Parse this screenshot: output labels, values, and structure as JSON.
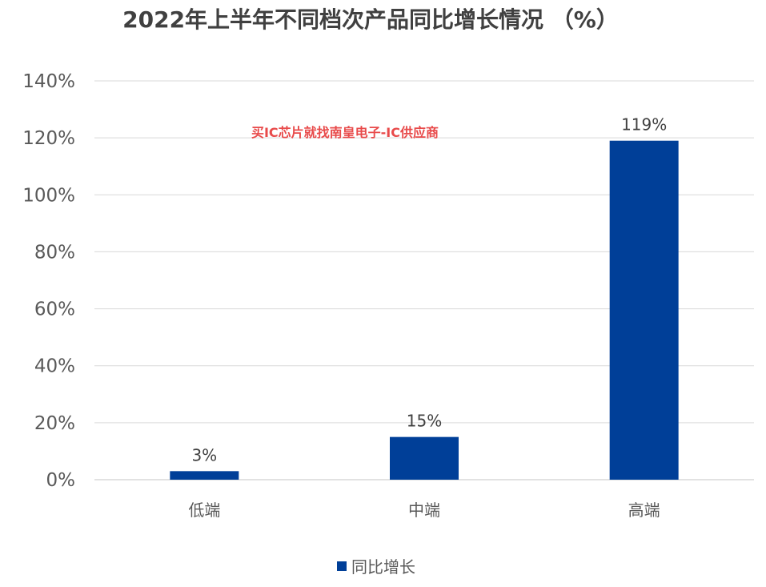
{
  "chart_data": {
    "type": "bar",
    "title": "2022年上半年不同档次产品同比增长情况 （%）",
    "categories": [
      "低端",
      "中端",
      "高端"
    ],
    "series": [
      {
        "name": "同比增长",
        "values": [
          3,
          15,
          119
        ],
        "value_labels": [
          "3%",
          "15%",
          "119%"
        ],
        "color": "#003f98"
      }
    ],
    "ylim": [
      0,
      140
    ],
    "yticks": [
      {
        "value": 0,
        "label": "0%"
      },
      {
        "value": 20,
        "label": "20%"
      },
      {
        "value": 40,
        "label": "40%"
      },
      {
        "value": 60,
        "label": "60%"
      },
      {
        "value": 80,
        "label": "80%"
      },
      {
        "value": 100,
        "label": "100%"
      },
      {
        "value": 120,
        "label": "120%"
      },
      {
        "value": 140,
        "label": "140%"
      }
    ],
    "grid": true,
    "legend_position": "bottom-center",
    "gridline_color": "#d9d9d9",
    "axis_color": "#d9d9d9"
  },
  "watermark": {
    "text": "买IC芯片就找南皇电子-IC供应商"
  }
}
